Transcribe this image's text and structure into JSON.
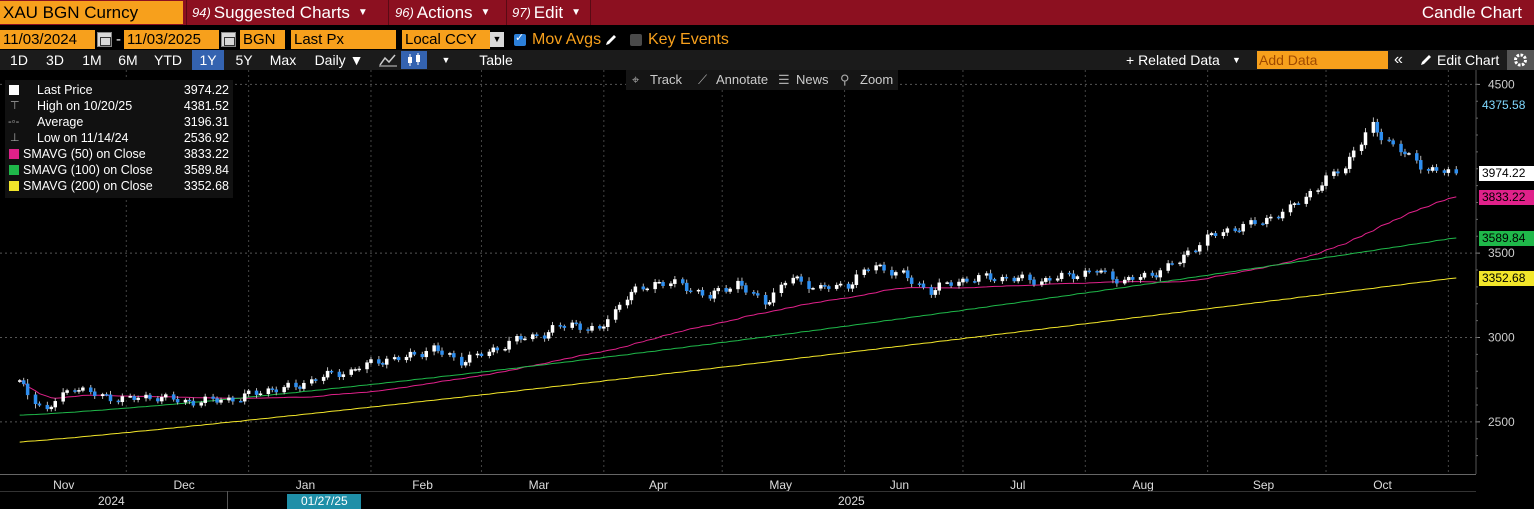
{
  "header": {
    "ticker": "XAU BGN Curncy",
    "menus": [
      {
        "num": "94)",
        "label": "Suggested Charts"
      },
      {
        "num": "96)",
        "label": "Actions"
      },
      {
        "num": "97)",
        "label": "Edit"
      }
    ],
    "chart_type": "Candle Chart"
  },
  "controls": {
    "start_date": "11/03/2024",
    "end_date": "11/03/2025",
    "date_sep": "-",
    "source": "BGN",
    "field": "Last Px",
    "currency": "Local CCY",
    "mov_avgs_label": "Mov Avgs",
    "key_events_label": "Key Events"
  },
  "periods": {
    "buttons": [
      "1D",
      "3D",
      "1M",
      "6M",
      "YTD",
      "1Y",
      "5Y",
      "Max"
    ],
    "active": "1Y",
    "frequency": "Daily ▼",
    "table_label": "Table",
    "related_data": "+ Related Data",
    "add_data_placeholder": "Add Data",
    "collapse": "«",
    "edit_chart": "Edit Chart"
  },
  "chart_toolbar": {
    "track": "Track",
    "annotate": "Annotate",
    "news": "News",
    "zoom": "Zoom"
  },
  "legend": [
    {
      "label": "Last Price",
      "value": "3974.22",
      "color": "#ffffff",
      "symbol": "square"
    },
    {
      "label": "High on 10/20/25",
      "value": "4381.52",
      "color": "#aaaaaa",
      "symbol": "high"
    },
    {
      "label": "Average",
      "value": "3196.31",
      "color": "#aaaaaa",
      "symbol": "avg"
    },
    {
      "label": "Low on 11/14/24",
      "value": "2536.92",
      "color": "#aaaaaa",
      "symbol": "low"
    },
    {
      "label": "SMAVG (50)  on Close",
      "value": "3833.22",
      "color": "#e0218a",
      "symbol": "square"
    },
    {
      "label": "SMAVG (100)  on Close",
      "value": "3589.84",
      "color": "#1fb84a",
      "symbol": "square"
    },
    {
      "label": "SMAVG (200)  on Close",
      "value": "3352.68",
      "color": "#f2e62a",
      "symbol": "square"
    }
  ],
  "badges": [
    {
      "value": "4375.58",
      "bg": "#000000",
      "fg": "#7fd8ff",
      "y": 4375.58
    },
    {
      "value": "3974.22",
      "bg": "#ffffff",
      "fg": "#000000",
      "y": 3974.22
    },
    {
      "value": "3833.22",
      "bg": "#e0218a",
      "fg": "#000000",
      "y": 3833.22
    },
    {
      "value": "3589.84",
      "bg": "#1fb84a",
      "fg": "#000000",
      "y": 3589.84
    },
    {
      "value": "3352.68",
      "bg": "#f2e62a",
      "fg": "#000000",
      "y": 3352.68
    }
  ],
  "axis": {
    "year_2024": "2024",
    "year_2025": "2025",
    "cursor_date": "01/27/25"
  },
  "chart_data": {
    "type": "candlestick",
    "title": "",
    "ylim": [
      2200,
      4600
    ],
    "yticks": [
      2500,
      3000,
      3500,
      4500
    ],
    "grid": true,
    "months": [
      "Nov",
      "Dec",
      "Jan",
      "Feb",
      "Mar",
      "Apr",
      "May",
      "Jun",
      "Jul",
      "Aug",
      "Sep",
      "Oct"
    ],
    "weekly_close": [
      [
        "2024-11-04",
        2735
      ],
      [
        "2024-11-11",
        2565
      ],
      [
        "2024-11-18",
        2710
      ],
      [
        "2024-11-25",
        2650
      ],
      [
        "2024-12-02",
        2635
      ],
      [
        "2024-12-09",
        2650
      ],
      [
        "2024-12-16",
        2620
      ],
      [
        "2024-12-23",
        2625
      ],
      [
        "2024-12-30",
        2640
      ],
      [
        "2025-01-06",
        2690
      ],
      [
        "2025-01-13",
        2705
      ],
      [
        "2025-01-20",
        2770
      ],
      [
        "2025-01-27",
        2800
      ],
      [
        "2025-02-03",
        2860
      ],
      [
        "2025-02-10",
        2880
      ],
      [
        "2025-02-17",
        2935
      ],
      [
        "2025-02-24",
        2860
      ],
      [
        "2025-03-03",
        2910
      ],
      [
        "2025-03-10",
        2985
      ],
      [
        "2025-03-17",
        3020
      ],
      [
        "2025-03-24",
        3085
      ],
      [
        "2025-03-31",
        3035
      ],
      [
        "2025-04-07",
        3240
      ],
      [
        "2025-04-14",
        3325
      ],
      [
        "2025-04-21",
        3315
      ],
      [
        "2025-04-28",
        3240
      ],
      [
        "2025-05-05",
        3325
      ],
      [
        "2025-05-12",
        3205
      ],
      [
        "2025-05-19",
        3355
      ],
      [
        "2025-05-26",
        3290
      ],
      [
        "2025-06-02",
        3310
      ],
      [
        "2025-06-09",
        3430
      ],
      [
        "2025-06-16",
        3370
      ],
      [
        "2025-06-23",
        3275
      ],
      [
        "2025-06-30",
        3335
      ],
      [
        "2025-07-07",
        3355
      ],
      [
        "2025-07-14",
        3350
      ],
      [
        "2025-07-21",
        3335
      ],
      [
        "2025-07-28",
        3365
      ],
      [
        "2025-08-04",
        3395
      ],
      [
        "2025-08-11",
        3335
      ],
      [
        "2025-08-18",
        3370
      ],
      [
        "2025-08-25",
        3450
      ],
      [
        "2025-09-01",
        3590
      ],
      [
        "2025-09-08",
        3645
      ],
      [
        "2025-09-15",
        3685
      ],
      [
        "2025-09-22",
        3760
      ],
      [
        "2025-09-29",
        3885
      ],
      [
        "2025-10-06",
        4015
      ],
      [
        "2025-10-13",
        4250
      ],
      [
        "2025-10-20",
        4110
      ],
      [
        "2025-10-27",
        4000
      ],
      [
        "2025-11-03",
        3974
      ]
    ],
    "series": [
      {
        "name": "Last Price",
        "last": 3974.22
      },
      {
        "name": "SMAVG (50)  on Close",
        "last": 3833.22
      },
      {
        "name": "SMAVG (100)  on Close",
        "last": 3589.84
      },
      {
        "name": "SMAVG (200)  on Close",
        "last": 3352.68
      }
    ],
    "high": {
      "date": "10/20/25",
      "value": 4381.52
    },
    "low": {
      "date": "11/14/24",
      "value": 2536.92
    },
    "average": 3196.31
  }
}
